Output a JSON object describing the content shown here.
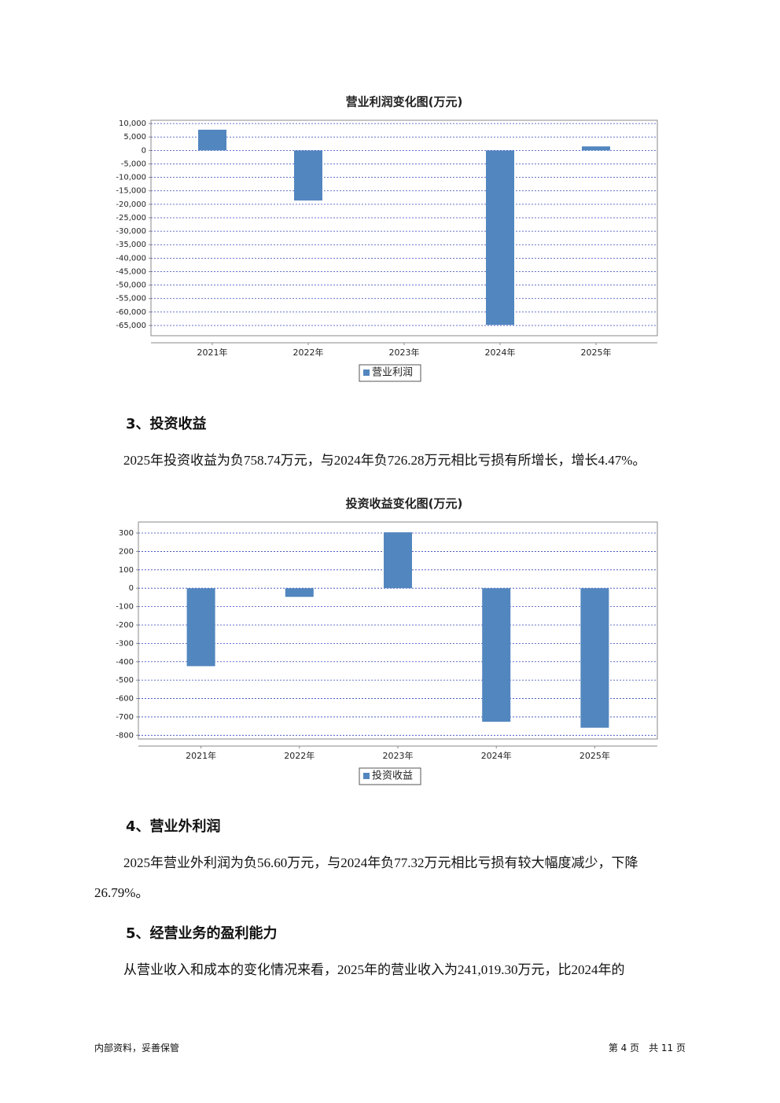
{
  "chart_data": [
    {
      "type": "bar",
      "title": "营业利润变化图(万元)",
      "categories": [
        "2021年",
        "2022年",
        "2023年",
        "2024年",
        "2025年"
      ],
      "series": [
        {
          "name": "营业利润",
          "color": "#5286bf",
          "values": [
            7700,
            -18600,
            0,
            -64800,
            1500
          ]
        }
      ],
      "ylim": [
        -68800,
        11200
      ],
      "yticks": [
        {
          "value": 10000,
          "label": "10,000"
        },
        {
          "value": 5000,
          "label": "5,000"
        },
        0,
        {
          "value": -5000,
          "label": "-5,000"
        },
        {
          "value": -10000,
          "label": "-10,000"
        },
        {
          "value": -15000,
          "label": "-15,000"
        },
        {
          "value": -20000,
          "label": "-20,000"
        },
        {
          "value": -25000,
          "label": "-25,000"
        },
        {
          "value": -30000,
          "label": "-30,000"
        },
        {
          "value": -35000,
          "label": "-35,000"
        },
        {
          "value": -40000,
          "label": "-40,000"
        },
        {
          "value": -45000,
          "label": "-45,000"
        },
        {
          "value": -50000,
          "label": "-50,000"
        },
        {
          "value": -55000,
          "label": "-55,000"
        },
        {
          "value": -60000,
          "label": "-60,000"
        },
        {
          "value": -65000,
          "label": "-65,000"
        }
      ],
      "grid": true
    },
    {
      "type": "bar",
      "title": "投资收益变化图(万元)",
      "categories": [
        "2021年",
        "2022年",
        "2023年",
        "2024年",
        "2025年"
      ],
      "series": [
        {
          "name": "投资收益",
          "color": "#5286bf",
          "values": [
            -424,
            -47,
            304,
            -726.28,
            -758.74
          ]
        }
      ],
      "ylim": [
        -820,
        360
      ],
      "yticks": [
        300,
        200,
        100,
        0,
        -100,
        -200,
        -300,
        -400,
        -500,
        -600,
        -700,
        -800
      ],
      "grid": true
    }
  ],
  "sections": [
    {
      "heading": "3、投资收益",
      "paragraph": "2025年投资收益为负758.74万元，与2024年负726.28万元相比亏损有所增长，增长4.47%。"
    },
    {
      "heading": "4、营业外利润",
      "paragraph": "2025年营业外利润为负56.60万元，与2024年负77.32万元相比亏损有较大幅度减少，下降26.79%。"
    },
    {
      "heading": "5、经营业务的盈利能力",
      "paragraph": "从营业收入和成本的变化情况来看，2025年的营业收入为241,019.30万元，比2024年的"
    }
  ],
  "footer": {
    "left": "内部资料，妥善保管",
    "right": "第 4 页　共 11 页"
  }
}
